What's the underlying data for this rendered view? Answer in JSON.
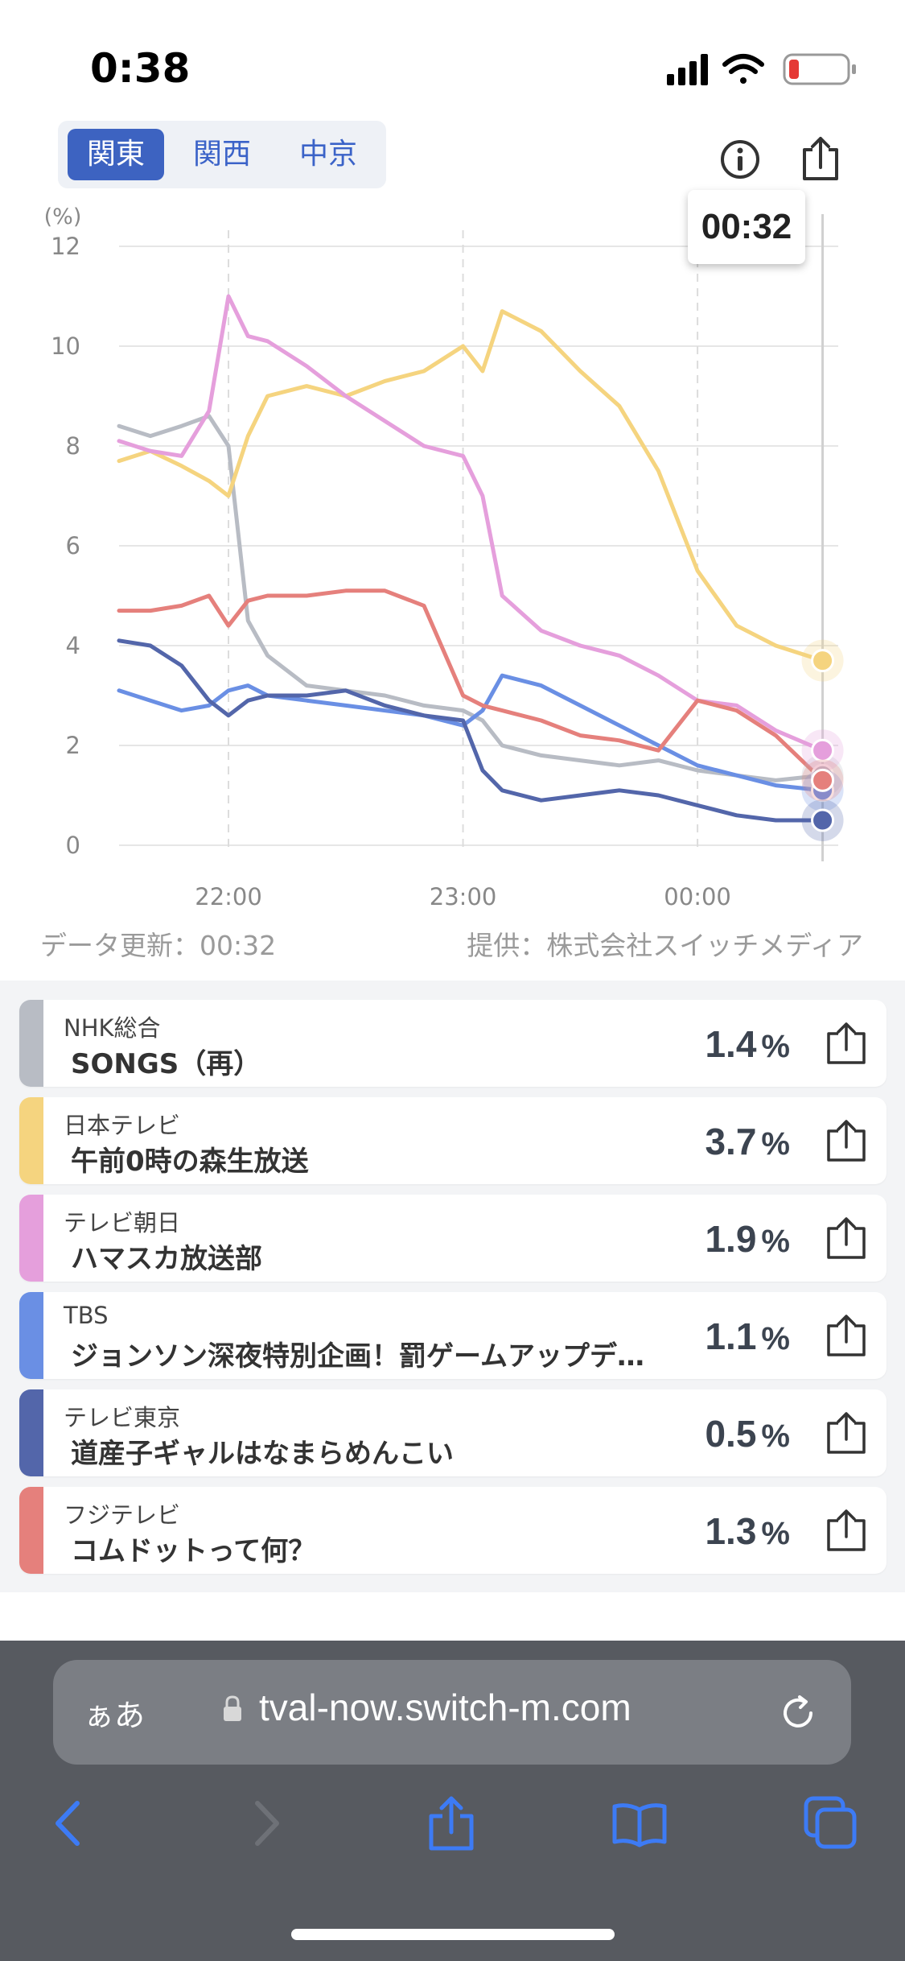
{
  "status_bar": {
    "time": "0:38"
  },
  "region_tabs": [
    {
      "label": "関東",
      "active": true
    },
    {
      "label": "関西",
      "active": false
    },
    {
      "label": "中京",
      "active": false
    }
  ],
  "chart": {
    "time_badge": "00:32",
    "data_updated": "データ更新：00:32",
    "provider": "提供：株式会社スイッチメディア"
  },
  "chart_data": {
    "type": "line",
    "ylabel": "(%)",
    "ylim": [
      0,
      12
    ],
    "yticks": [
      "0",
      "2",
      "4",
      "6",
      "8",
      "10",
      "12"
    ],
    "xticks": [
      "22:00",
      "23:00",
      "00:00"
    ],
    "grid": true,
    "x": [
      "21:32",
      "21:40",
      "21:48",
      "21:55",
      "22:00",
      "22:05",
      "22:10",
      "22:20",
      "22:30",
      "22:40",
      "22:50",
      "23:00",
      "23:05",
      "23:10",
      "23:20",
      "23:30",
      "23:40",
      "23:50",
      "00:00",
      "00:10",
      "00:20",
      "00:32"
    ],
    "series": [
      {
        "name": "NHK総合",
        "color": "#b8bcc4",
        "values": [
          8.4,
          8.2,
          8.4,
          8.6,
          8.0,
          4.5,
          3.8,
          3.2,
          3.1,
          3.0,
          2.8,
          2.7,
          2.5,
          2.0,
          1.8,
          1.7,
          1.6,
          1.7,
          1.5,
          1.4,
          1.3,
          1.4
        ]
      },
      {
        "name": "日本テレビ",
        "color": "#f5d47f",
        "values": [
          7.7,
          7.9,
          7.6,
          7.3,
          7.0,
          8.2,
          9.0,
          9.2,
          9.0,
          9.3,
          9.5,
          10.0,
          9.5,
          10.7,
          10.3,
          9.5,
          8.8,
          7.5,
          5.5,
          4.4,
          4.0,
          3.7
        ]
      },
      {
        "name": "テレビ朝日",
        "color": "#e59fdc",
        "values": [
          8.1,
          7.9,
          7.8,
          8.7,
          11.0,
          10.2,
          10.1,
          9.6,
          9.0,
          8.5,
          8.0,
          7.8,
          7.0,
          5.0,
          4.3,
          4.0,
          3.8,
          3.4,
          2.9,
          2.8,
          2.3,
          1.9
        ]
      },
      {
        "name": "TBS",
        "color": "#6a8fe4",
        "values": [
          3.1,
          2.9,
          2.7,
          2.8,
          3.1,
          3.2,
          3.0,
          2.9,
          2.8,
          2.7,
          2.6,
          2.4,
          2.7,
          3.4,
          3.2,
          2.8,
          2.4,
          2.0,
          1.6,
          1.4,
          1.2,
          1.1
        ]
      },
      {
        "name": "テレビ東京",
        "color": "#5366aa",
        "values": [
          4.1,
          4.0,
          3.6,
          2.9,
          2.6,
          2.9,
          3.0,
          3.0,
          3.1,
          2.8,
          2.6,
          2.5,
          1.5,
          1.1,
          0.9,
          1.0,
          1.1,
          1.0,
          0.8,
          0.6,
          0.5,
          0.5
        ]
      },
      {
        "name": "フジテレビ",
        "color": "#e5807c",
        "values": [
          4.7,
          4.7,
          4.8,
          5.0,
          4.4,
          4.9,
          5.0,
          5.0,
          5.1,
          5.1,
          4.8,
          3.0,
          2.8,
          2.7,
          2.5,
          2.2,
          2.1,
          1.9,
          2.9,
          2.7,
          2.2,
          1.3
        ]
      }
    ]
  },
  "channels": [
    {
      "channel": "NHK総合",
      "program": "SONGS（再）",
      "rating": "1.4",
      "color": "#b8bcc4"
    },
    {
      "channel": "日本テレビ",
      "program": "午前0時の森生放送",
      "rating": "3.7",
      "color": "#f5d47f"
    },
    {
      "channel": "テレビ朝日",
      "program": "ハマスカ放送部",
      "rating": "1.9",
      "color": "#e59fdc"
    },
    {
      "channel": "TBS",
      "program": "ジョンソン深夜特別企画！罰ゲームアップデ…",
      "rating": "1.1",
      "color": "#6a8fe4"
    },
    {
      "channel": "テレビ東京",
      "program": "道産子ギャルはなまらめんこい",
      "rating": "0.5",
      "color": "#5366aa"
    },
    {
      "channel": "フジテレビ",
      "program": "コムドットって何？",
      "rating": "1.3",
      "color": "#e5807c"
    }
  ],
  "rating_unit": "%",
  "browser": {
    "aa_label": "ぁあ",
    "url": "tval-now.switch-m.com"
  }
}
